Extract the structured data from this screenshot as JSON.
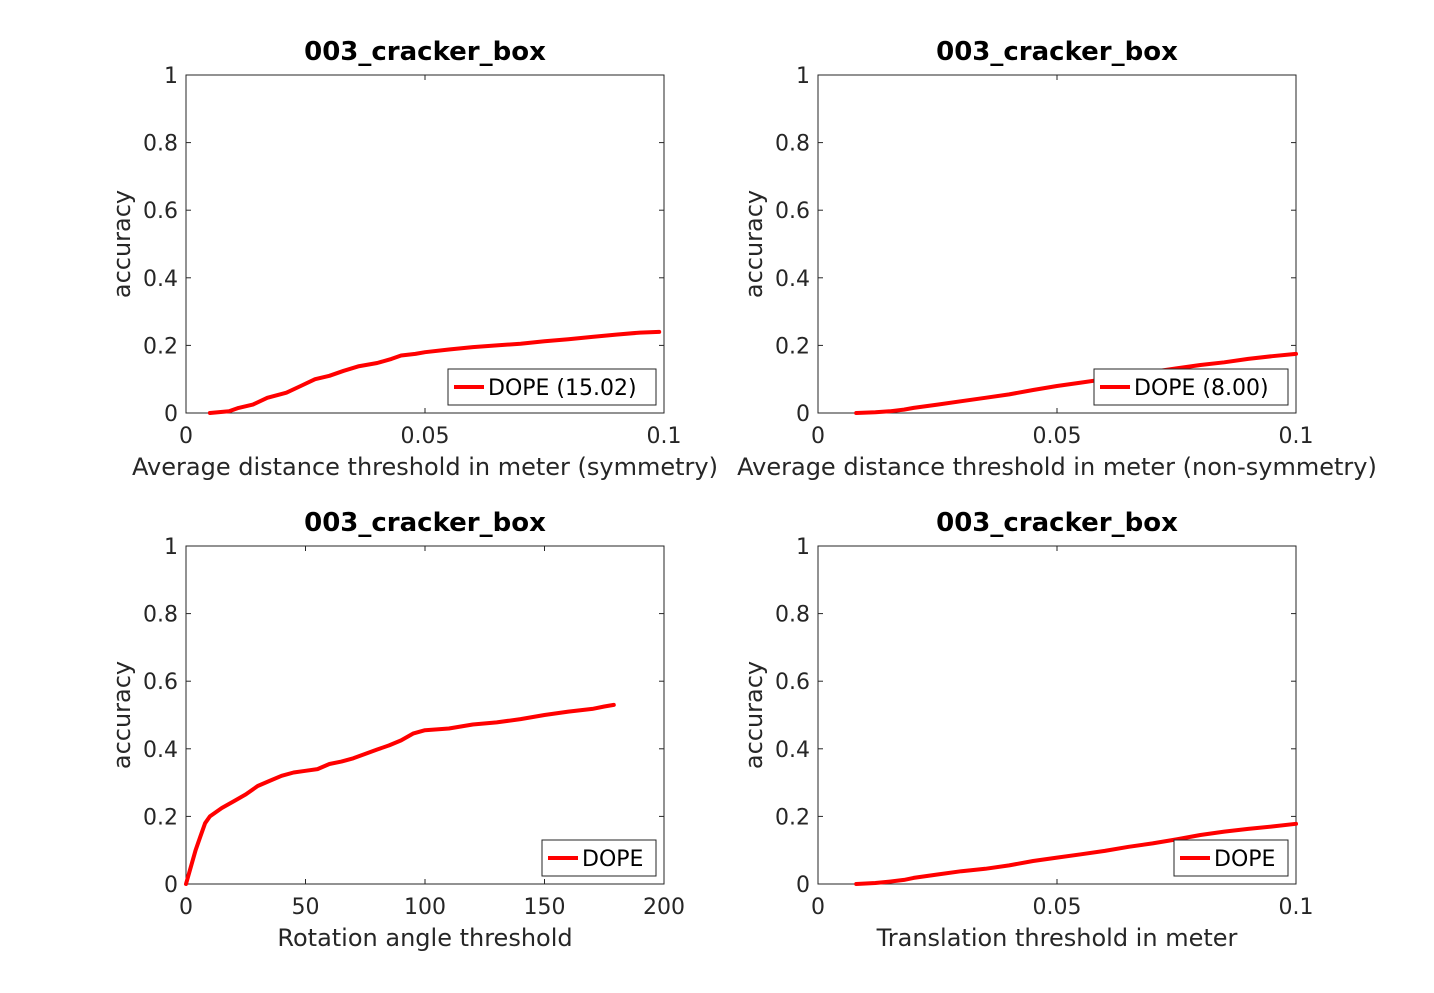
{
  "chart_data": [
    {
      "type": "line",
      "title": "003_cracker_box",
      "xlabel": "Average distance threshold in meter (symmetry)",
      "ylabel": "accuracy",
      "xlim": [
        0,
        0.1
      ],
      "ylim": [
        0,
        1
      ],
      "xticks": [
        "0",
        "0.05",
        "0.1"
      ],
      "yticks": [
        "0",
        "0.2",
        "0.4",
        "0.6",
        "0.8",
        "1"
      ],
      "legend_position": "bottom-right",
      "grid": false,
      "series": [
        {
          "name": "DOPE (15.02)",
          "color": "#ff0000",
          "x": [
            0.005,
            0.009,
            0.011,
            0.014,
            0.017,
            0.021,
            0.024,
            0.027,
            0.03,
            0.033,
            0.036,
            0.04,
            0.043,
            0.045,
            0.048,
            0.05,
            0.055,
            0.06,
            0.065,
            0.07,
            0.075,
            0.08,
            0.085,
            0.09,
            0.095,
            0.099
          ],
          "y": [
            0.0,
            0.005,
            0.015,
            0.025,
            0.045,
            0.06,
            0.08,
            0.1,
            0.11,
            0.125,
            0.138,
            0.148,
            0.16,
            0.17,
            0.175,
            0.18,
            0.188,
            0.195,
            0.2,
            0.205,
            0.212,
            0.218,
            0.225,
            0.232,
            0.238,
            0.24
          ]
        }
      ]
    },
    {
      "type": "line",
      "title": "003_cracker_box",
      "xlabel": "Average distance threshold in meter (non-symmetry)",
      "ylabel": "accuracy",
      "xlim": [
        0,
        0.1
      ],
      "ylim": [
        0,
        1
      ],
      "xticks": [
        "0",
        "0.05",
        "0.1"
      ],
      "yticks": [
        "0",
        "0.2",
        "0.4",
        "0.6",
        "0.8",
        "1"
      ],
      "legend_position": "bottom-right",
      "grid": false,
      "series": [
        {
          "name": "DOPE (8.00)",
          "color": "#ff0000",
          "x": [
            0.008,
            0.012,
            0.015,
            0.018,
            0.02,
            0.025,
            0.03,
            0.035,
            0.04,
            0.045,
            0.05,
            0.055,
            0.06,
            0.065,
            0.07,
            0.075,
            0.08,
            0.085,
            0.09,
            0.095,
            0.1
          ],
          "y": [
            0.0,
            0.002,
            0.005,
            0.01,
            0.015,
            0.025,
            0.035,
            0.045,
            0.055,
            0.068,
            0.08,
            0.09,
            0.1,
            0.11,
            0.122,
            0.132,
            0.142,
            0.15,
            0.16,
            0.168,
            0.175
          ]
        }
      ]
    },
    {
      "type": "line",
      "title": "003_cracker_box",
      "xlabel": "Rotation angle threshold",
      "ylabel": "accuracy",
      "xlim": [
        0,
        200
      ],
      "ylim": [
        0,
        1
      ],
      "xticks": [
        "0",
        "50",
        "100",
        "150",
        "200"
      ],
      "yticks": [
        "0",
        "0.2",
        "0.4",
        "0.6",
        "0.8",
        "1"
      ],
      "legend_position": "bottom-right",
      "grid": false,
      "series": [
        {
          "name": "DOPE",
          "color": "#ff0000",
          "x": [
            0,
            2,
            4,
            6,
            8,
            10,
            12,
            15,
            20,
            25,
            30,
            35,
            40,
            45,
            50,
            55,
            60,
            65,
            70,
            75,
            80,
            85,
            90,
            95,
            100,
            110,
            120,
            130,
            140,
            150,
            160,
            170,
            175,
            179
          ],
          "y": [
            0.0,
            0.05,
            0.1,
            0.14,
            0.18,
            0.2,
            0.21,
            0.225,
            0.245,
            0.265,
            0.29,
            0.305,
            0.32,
            0.33,
            0.335,
            0.34,
            0.355,
            0.362,
            0.372,
            0.385,
            0.398,
            0.41,
            0.425,
            0.445,
            0.455,
            0.46,
            0.472,
            0.478,
            0.488,
            0.5,
            0.51,
            0.518,
            0.525,
            0.53
          ]
        }
      ]
    },
    {
      "type": "line",
      "title": "003_cracker_box",
      "xlabel": "Translation threshold in meter",
      "ylabel": "accuracy",
      "xlim": [
        0,
        0.1
      ],
      "ylim": [
        0,
        1
      ],
      "xticks": [
        "0",
        "0.05",
        "0.1"
      ],
      "yticks": [
        "0",
        "0.2",
        "0.4",
        "0.6",
        "0.8",
        "1"
      ],
      "legend_position": "bottom-right",
      "grid": false,
      "series": [
        {
          "name": "DOPE",
          "color": "#ff0000",
          "x": [
            0.008,
            0.012,
            0.015,
            0.018,
            0.02,
            0.025,
            0.03,
            0.035,
            0.04,
            0.045,
            0.05,
            0.055,
            0.06,
            0.065,
            0.07,
            0.075,
            0.08,
            0.085,
            0.09,
            0.095,
            0.1
          ],
          "y": [
            0.0,
            0.003,
            0.007,
            0.012,
            0.018,
            0.028,
            0.038,
            0.045,
            0.055,
            0.068,
            0.078,
            0.088,
            0.098,
            0.11,
            0.12,
            0.132,
            0.145,
            0.155,
            0.163,
            0.17,
            0.178
          ]
        }
      ]
    }
  ]
}
